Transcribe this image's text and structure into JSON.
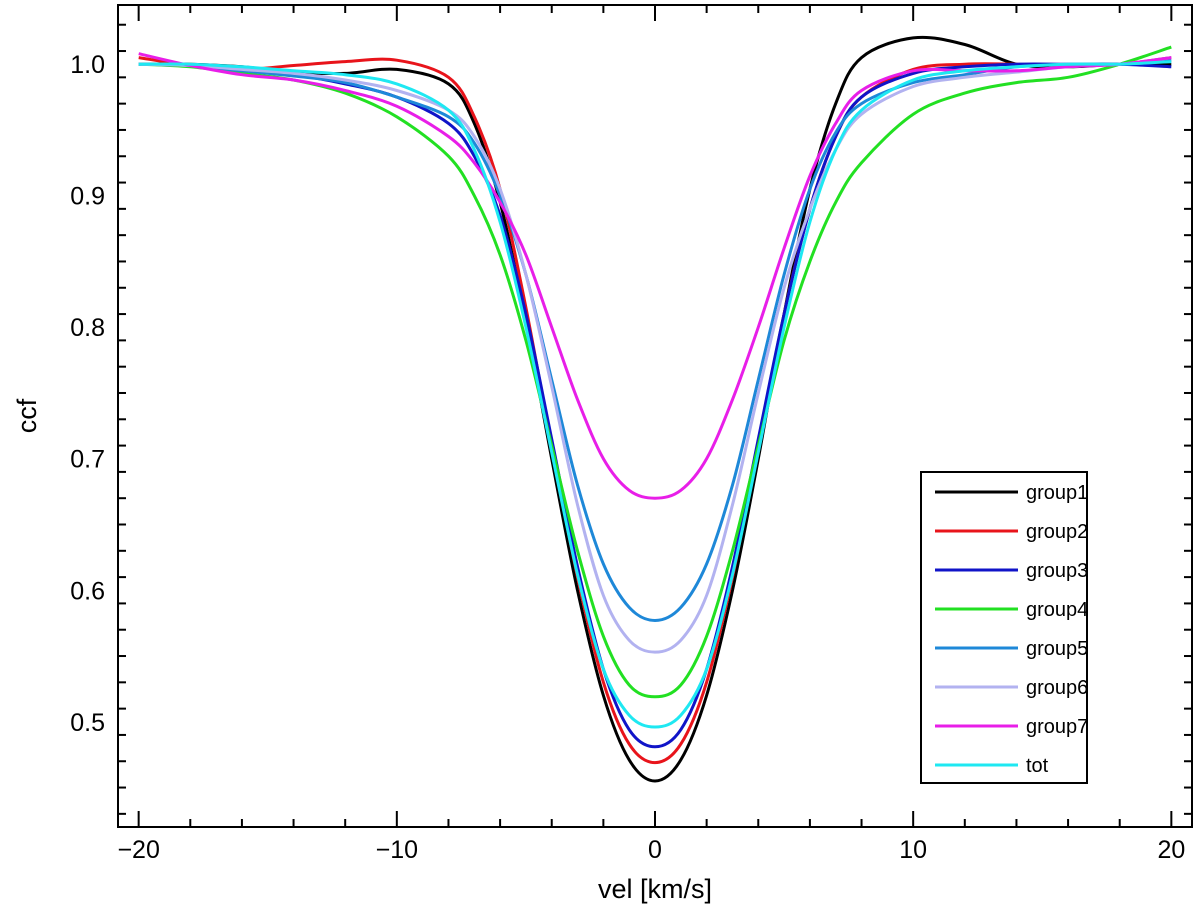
{
  "chart_data": {
    "type": "line",
    "title": "",
    "xlabel": "vel [km/s]",
    "ylabel": "ccf",
    "xlim": [
      -20.8,
      20.8
    ],
    "ylim": [
      0.42,
      1.045
    ],
    "xticks": [
      -20,
      -10,
      0,
      10,
      20
    ],
    "xtick_labels": [
      "−20",
      "−10",
      "0",
      "10",
      "20"
    ],
    "yticks": [
      0.5,
      0.6,
      0.7,
      0.8,
      0.9,
      1.0
    ],
    "ytick_labels": [
      "0.5",
      "0.6",
      "0.7",
      "0.8",
      "0.9",
      "1.0"
    ],
    "grid": false,
    "legend_position": "lower-right",
    "x": [
      -20,
      -18,
      -16,
      -14,
      -12,
      -10,
      -8,
      -7,
      -6,
      -5,
      -4,
      -3,
      -2,
      -1,
      0,
      1,
      2,
      3,
      4,
      5,
      6,
      7,
      8,
      10,
      12,
      14,
      16,
      18,
      20
    ],
    "series": [
      {
        "name": "group1",
        "color": "#000000",
        "values": [
          1.0,
          1.0,
          0.998,
          0.994,
          0.993,
          0.996,
          0.985,
          0.955,
          0.895,
          0.805,
          0.7,
          0.6,
          0.52,
          0.471,
          0.455,
          0.471,
          0.52,
          0.6,
          0.7,
          0.81,
          0.905,
          0.97,
          1.005,
          1.02,
          1.015,
          1.0,
          0.998,
          1.0,
          1.0
        ]
      },
      {
        "name": "group2",
        "color": "#e8141b",
        "values": [
          1.005,
          0.999,
          0.996,
          0.999,
          1.002,
          1.003,
          0.99,
          0.96,
          0.905,
          0.815,
          0.71,
          0.61,
          0.53,
          0.483,
          0.469,
          0.483,
          0.53,
          0.61,
          0.71,
          0.81,
          0.89,
          0.945,
          0.975,
          0.996,
          1.0,
          1.0,
          0.999,
          1.0,
          1.005
        ]
      },
      {
        "name": "group3",
        "color": "#1014c8",
        "values": [
          1.0,
          0.999,
          0.996,
          0.992,
          0.985,
          0.975,
          0.955,
          0.93,
          0.885,
          0.81,
          0.715,
          0.618,
          0.54,
          0.494,
          0.481,
          0.494,
          0.54,
          0.618,
          0.715,
          0.81,
          0.89,
          0.945,
          0.975,
          0.993,
          0.998,
          1.0,
          1.0,
          1.0,
          0.998
        ]
      },
      {
        "name": "group4",
        "color": "#22e022",
        "values": [
          1.0,
          0.998,
          0.993,
          0.988,
          0.978,
          0.96,
          0.93,
          0.9,
          0.855,
          0.79,
          0.71,
          0.63,
          0.565,
          0.528,
          0.519,
          0.528,
          0.565,
          0.63,
          0.71,
          0.79,
          0.85,
          0.895,
          0.925,
          0.962,
          0.978,
          0.986,
          0.99,
          1.0,
          1.013
        ]
      },
      {
        "name": "group5",
        "color": "#1e88d8",
        "values": [
          1.0,
          0.999,
          0.995,
          0.991,
          0.986,
          0.975,
          0.96,
          0.94,
          0.9,
          0.84,
          0.76,
          0.68,
          0.62,
          0.587,
          0.577,
          0.587,
          0.62,
          0.68,
          0.76,
          0.84,
          0.905,
          0.948,
          0.97,
          0.986,
          0.992,
          0.998,
          1.0,
          1.0,
          1.003
        ]
      },
      {
        "name": "group6",
        "color": "#b2b2f0",
        "values": [
          1.0,
          0.999,
          0.996,
          0.993,
          0.988,
          0.98,
          0.965,
          0.945,
          0.905,
          0.84,
          0.755,
          0.665,
          0.596,
          0.562,
          0.553,
          0.562,
          0.596,
          0.665,
          0.75,
          0.83,
          0.89,
          0.935,
          0.962,
          0.983,
          0.99,
          0.994,
          0.998,
          1.0,
          1.005
        ]
      },
      {
        "name": "group7",
        "color": "#e81ee8",
        "values": [
          1.008,
          0.999,
          0.992,
          0.988,
          0.98,
          0.968,
          0.945,
          0.925,
          0.895,
          0.855,
          0.8,
          0.745,
          0.7,
          0.676,
          0.67,
          0.676,
          0.7,
          0.745,
          0.8,
          0.86,
          0.915,
          0.955,
          0.98,
          0.995,
          0.995,
          0.995,
          0.998,
          1.0,
          1.005
        ]
      },
      {
        "name": "tot",
        "color": "#1ee8f2",
        "values": [
          1.0,
          1.0,
          0.998,
          0.995,
          0.992,
          0.985,
          0.965,
          0.935,
          0.88,
          0.8,
          0.705,
          0.612,
          0.54,
          0.505,
          0.496,
          0.505,
          0.54,
          0.612,
          0.705,
          0.8,
          0.88,
          0.935,
          0.965,
          0.988,
          0.995,
          0.998,
          1.0,
          1.0,
          1.002
        ]
      }
    ]
  }
}
